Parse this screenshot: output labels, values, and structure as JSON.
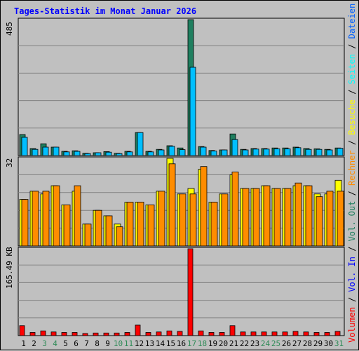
{
  "title": "Tages-Statistik im Monat Januar 2026",
  "colors": {
    "background": "#c0c0c0",
    "grid": "#808080",
    "anfragen": "#1f7f5f",
    "dateien": "#00bfff",
    "seiten": "#00ffff",
    "besuche": "#ffff00",
    "rechner": "#ff8c00",
    "volumen": "#ff0000",
    "weekend_label": "#2e8b57",
    "title": "#0000ff"
  },
  "chart_data": [
    {
      "type": "bar",
      "panel": "requests",
      "ymax_label": "485",
      "ylim": [
        0,
        485
      ],
      "grid": true,
      "categories": [
        "1",
        "2",
        "3",
        "4",
        "5",
        "6",
        "7",
        "8",
        "9",
        "10",
        "11",
        "12",
        "13",
        "14",
        "15",
        "16",
        "17",
        "18",
        "19",
        "20",
        "21",
        "22",
        "23",
        "24",
        "25",
        "26",
        "27",
        "28",
        "29",
        "30",
        "31"
      ],
      "series": [
        {
          "name": "Anfragen",
          "color": "#1f7f5f",
          "values": [
            75,
            25,
            42,
            30,
            15,
            17,
            8,
            10,
            14,
            8,
            15,
            82,
            15,
            22,
            35,
            27,
            485,
            32,
            18,
            20,
            77,
            22,
            25,
            25,
            27,
            27,
            30,
            25,
            24,
            22,
            27
          ]
        },
        {
          "name": "Dateien",
          "color": "#00bfff",
          "values": [
            65,
            22,
            30,
            30,
            13,
            15,
            7,
            10,
            12,
            7,
            13,
            82,
            13,
            20,
            33,
            21,
            315,
            30,
            16,
            20,
            57,
            20,
            23,
            23,
            24,
            24,
            28,
            22,
            22,
            20,
            26
          ]
        }
      ]
    },
    {
      "type": "bar",
      "panel": "visits",
      "ymax_label": "32",
      "ylim": [
        0,
        32
      ],
      "grid": true,
      "categories": [
        "1",
        "2",
        "3",
        "4",
        "5",
        "6",
        "7",
        "8",
        "9",
        "10",
        "11",
        "12",
        "13",
        "14",
        "15",
        "16",
        "17",
        "18",
        "19",
        "20",
        "21",
        "22",
        "23",
        "24",
        "25",
        "26",
        "27",
        "28",
        "29",
        "30",
        "31"
      ],
      "series": [
        {
          "name": "Besuche",
          "color": "#ffff00",
          "values": [
            17,
            20,
            19,
            22,
            15,
            20,
            8,
            13,
            11,
            8,
            16,
            16,
            15,
            20,
            32,
            19,
            21,
            28,
            16,
            19,
            26,
            21,
            21,
            22,
            21,
            21,
            22,
            22,
            19,
            19,
            24
          ]
        },
        {
          "name": "Rechner",
          "color": "#ff8c00",
          "values": [
            17,
            20,
            20,
            22,
            15,
            22,
            8,
            13,
            11,
            7,
            16,
            16,
            15,
            20,
            30,
            19,
            19,
            29,
            16,
            19,
            27,
            21,
            21,
            22,
            21,
            21,
            23,
            22,
            18,
            20,
            20
          ]
        }
      ]
    },
    {
      "type": "bar",
      "panel": "volume",
      "ymax_label": "165.49 KB",
      "ylim": [
        0,
        165.49
      ],
      "grid": true,
      "categories": [
        "1",
        "2",
        "3",
        "4",
        "5",
        "6",
        "7",
        "8",
        "9",
        "10",
        "11",
        "12",
        "13",
        "14",
        "15",
        "16",
        "17",
        "18",
        "19",
        "20",
        "21",
        "22",
        "23",
        "24",
        "25",
        "26",
        "27",
        "28",
        "29",
        "30",
        "31"
      ],
      "series": [
        {
          "name": "Volumen",
          "color": "#ff0000",
          "values": [
            19,
            6,
            9,
            7,
            6,
            6,
            4,
            5,
            5,
            5,
            6,
            20,
            6,
            7,
            9,
            8,
            165.49,
            9,
            6,
            6,
            19,
            7,
            7,
            7,
            7,
            7,
            8,
            7,
            6,
            6,
            8
          ]
        }
      ]
    }
  ],
  "x_axis": {
    "labels": [
      "1",
      "2",
      "3",
      "4",
      "5",
      "6",
      "7",
      "8",
      "9",
      "10",
      "11",
      "12",
      "13",
      "14",
      "15",
      "16",
      "17",
      "18",
      "19",
      "20",
      "21",
      "22",
      "23",
      "24",
      "25",
      "26",
      "27",
      "28",
      "29",
      "30",
      "31"
    ],
    "weekend": [
      3,
      4,
      10,
      11,
      17,
      18,
      24,
      25,
      31
    ]
  },
  "legend_right": [
    {
      "text": "Volumen",
      "color": "#ff0000"
    },
    {
      "text": " / ",
      "color": "#000000"
    },
    {
      "text": "Vol. In",
      "color": "#0000ff"
    },
    {
      "text": " / ",
      "color": "#000000"
    },
    {
      "text": "Vol. Out",
      "color": "#1f7f5f"
    },
    {
      "text": " / ",
      "color": "#000000"
    },
    {
      "text": "Rechner",
      "color": "#ff8c00"
    },
    {
      "text": " / ",
      "color": "#000000"
    },
    {
      "text": "Besuche",
      "color": "#ffff00"
    },
    {
      "text": " / ",
      "color": "#000000"
    },
    {
      "text": "Seiten",
      "color": "#00ffff"
    },
    {
      "text": " / ",
      "color": "#000000"
    },
    {
      "text": "Dateien",
      "color": "#0060ff"
    },
    {
      "text": " / ",
      "color": "#000000"
    },
    {
      "text": "Anfragen",
      "color": "#1f7f5f"
    }
  ]
}
